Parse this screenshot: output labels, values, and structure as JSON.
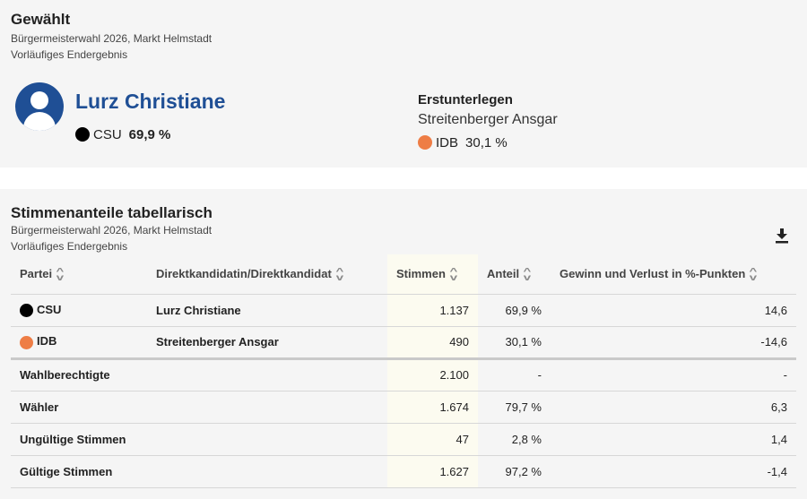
{
  "winner_section": {
    "title": "Gewählt",
    "subtitle1": "Bürgermeisterwahl 2026, Markt Helmstadt",
    "subtitle2": "Vorläufiges Endergebnis",
    "winner": {
      "name": "Lurz Christiane",
      "party": "CSU",
      "percent": "69,9 %",
      "party_color": "#000000"
    },
    "runner_up": {
      "heading": "Erstunterlegen",
      "name": "Streitenberger Ansgar",
      "party": "IDB",
      "percent": "30,1 %",
      "party_color": "#ee7d45"
    },
    "avatar_icon": "user-avatar-icon",
    "accent_color": "#1f4f95"
  },
  "table_section": {
    "title": "Stimmenanteile tabellarisch",
    "subtitle1": "Bürgermeisterwahl 2026, Markt Helmstadt",
    "subtitle2": "Vorläufiges Endergebnis",
    "download_icon": "download-icon",
    "columns": [
      "Partei",
      "Direktkandidatin/Direktkandidat",
      "Stimmen",
      "Anteil",
      "Gewinn und Verlust in %-Punkten"
    ],
    "party_rows": [
      {
        "party": "CSU",
        "color": "#000000",
        "candidate": "Lurz Christiane",
        "votes": "1.137",
        "share": "69,9 %",
        "change": "14,6"
      },
      {
        "party": "IDB",
        "color": "#ee7d45",
        "candidate": "Streitenberger Ansgar",
        "votes": "490",
        "share": "30,1 %",
        "change": "-14,6"
      }
    ],
    "summary_rows": [
      {
        "label": "Wahlberechtigte",
        "votes": "2.100",
        "share": "-",
        "change": "-"
      },
      {
        "label": "Wähler",
        "votes": "1.674",
        "share": "79,7 %",
        "change": "6,3"
      },
      {
        "label": "Ungültige Stimmen",
        "votes": "47",
        "share": "2,8 %",
        "change": "1,4"
      },
      {
        "label": "Gültige Stimmen",
        "votes": "1.627",
        "share": "97,2 %",
        "change": "-1,4"
      }
    ]
  }
}
